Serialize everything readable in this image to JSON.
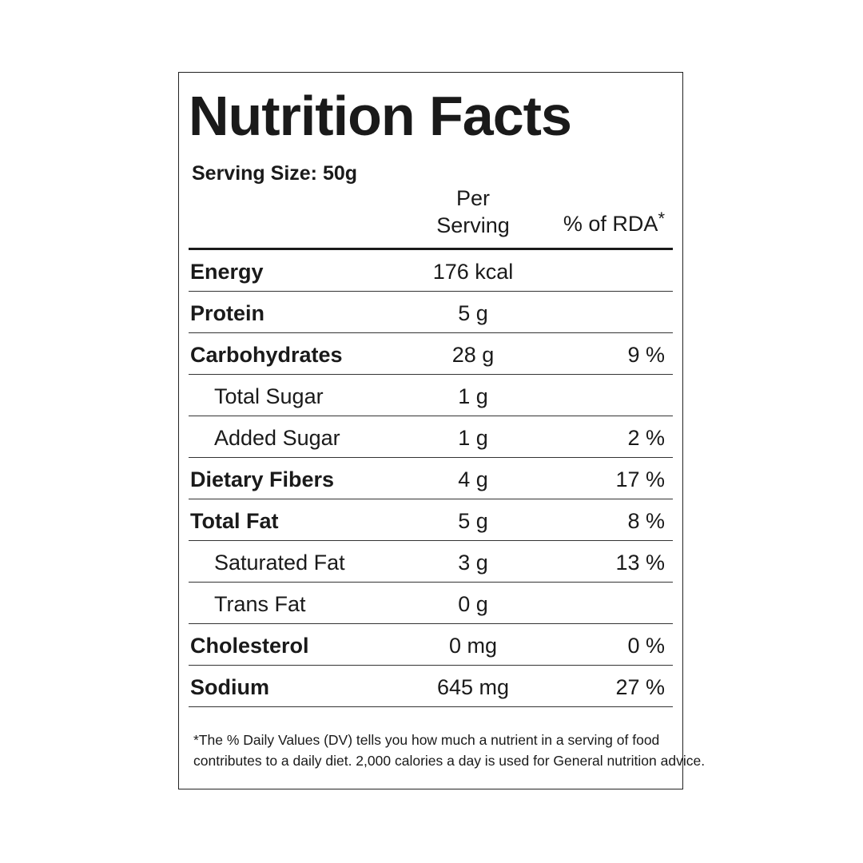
{
  "label": {
    "title": "Nutrition Facts",
    "serving_size": "Serving Size: 50g",
    "header": {
      "per_serving_lines": [
        "Per",
        "Serving"
      ],
      "rda": "% of RDA",
      "rda_mark": "*"
    },
    "rows": [
      {
        "name": "Energy",
        "amount": "176 kcal"
      },
      {
        "name": "Protein",
        "amount": "5 g"
      },
      {
        "name": "Carbohydrates",
        "amount": "28 g",
        "rda": "9 %",
        "sub": [
          {
            "name": "Total Sugar",
            "amount": "1 g"
          },
          {
            "name": "Added Sugar",
            "amount": "1 g",
            "rda": "2 %"
          }
        ]
      },
      {
        "name": "Dietary Fibers",
        "amount": "4 g",
        "rda": "17 %"
      },
      {
        "name": "Total Fat",
        "amount": "5 g",
        "rda": "8 %",
        "sub": [
          {
            "name": "Saturated Fat",
            "amount": "3 g",
            "rda": "13 %"
          },
          {
            "name": "Trans Fat",
            "amount": "0 g"
          }
        ]
      },
      {
        "name": "Cholesterol",
        "amount": "0 mg",
        "rda": "0 %"
      },
      {
        "name": "Sodium",
        "amount": "645 mg",
        "rda": "27 %"
      }
    ],
    "footnote_lines": [
      "*The % Daily Values (DV) tells you how much a nutrient in a serving of food",
      "contributes to a daily diet. 2,000 calories a day is used for General nutrition advice."
    ]
  }
}
